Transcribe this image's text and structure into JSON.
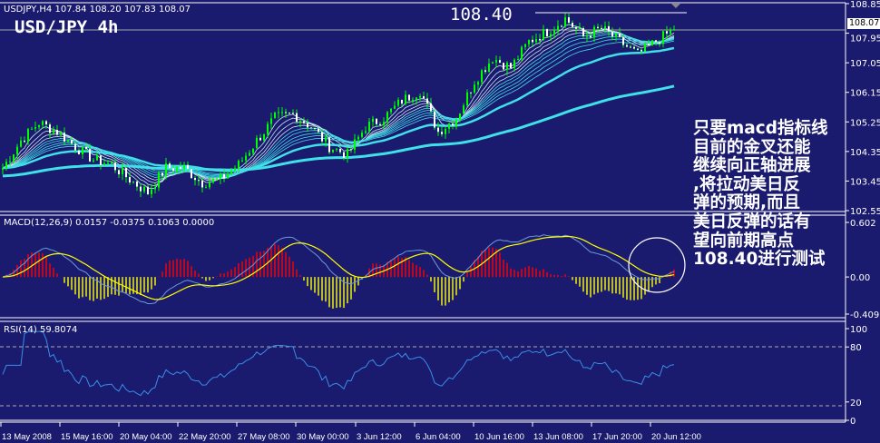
{
  "header": {
    "symbol_info": "USDJPY,H4  107.84 108.20 107.83 108.07",
    "title": "USD/JPY 4h",
    "level_label": "108.40"
  },
  "macd_header": "MACD(12,26,9) 0.0157 -0.0375 0.1063 0.0000",
  "rsi_header": "RSI(14) 59.8074",
  "annotation": [
    "只要macd指标线",
    "目前的金叉还能",
    "继续向正轴进展",
    ",将拉动美日反",
    "弹的预期,而且",
    "美日反弹的话有",
    "望向前期高点",
    "108.40进行测试"
  ],
  "colors": {
    "background": "#1a1a6e",
    "bull": "#00ff00",
    "bear": "#ffffff",
    "ma": "#40e0e8",
    "macd_pos": "#ff0000",
    "macd_neg": "#ffff00",
    "signal": "#ffff00",
    "rsi": "#3a8ee6"
  },
  "chart_data": [
    {
      "type": "candlestick",
      "symbol": "USDJPY",
      "timeframe": "H4",
      "y_ticks": [
        "108.85",
        "107.95",
        "107.05",
        "106.15",
        "105.25",
        "104.35",
        "103.45",
        "102.55"
      ],
      "ylim": [
        102.55,
        108.85
      ],
      "current_price": "108.07",
      "resistance": 108.4,
      "x_ticks": [
        "13 May 2008",
        "15 May 16:00",
        "20 May 04:00",
        "22 May 20:00",
        "27 May 08:00",
        "30 May 00:00",
        "3 Jun 12:00",
        "6 Jun 04:00",
        "10 Jun 16:00",
        "13 Jun 08:00",
        "17 Jun 20:00",
        "20 Jun 12:00"
      ],
      "close_path": [
        103.85,
        104.68,
        105.23,
        104.95,
        104.5,
        104.1,
        103.95,
        103.5,
        103.1,
        103.85,
        103.85,
        103.4,
        103.5,
        103.95,
        104.68,
        105.37,
        105.5,
        105.1,
        104.5,
        104.25,
        105.1,
        105.37,
        105.9,
        106.2,
        104.95,
        105.37,
        106.5,
        107.2,
        106.9,
        107.7,
        108.0,
        108.4,
        107.85,
        108.1,
        107.7,
        107.3,
        107.7,
        108.07
      ]
    },
    {
      "type": "bar+line",
      "name": "MACD(12,26,9)",
      "y_ticks": [
        "0.602",
        "0.00",
        "-0.4095"
      ],
      "ylim": [
        -0.4095,
        0.602
      ]
    },
    {
      "type": "line",
      "name": "RSI(14)",
      "y_ticks": [
        "100",
        "80",
        "20",
        "0"
      ],
      "ylim": [
        0,
        100
      ],
      "levels": [
        80,
        20
      ]
    }
  ]
}
